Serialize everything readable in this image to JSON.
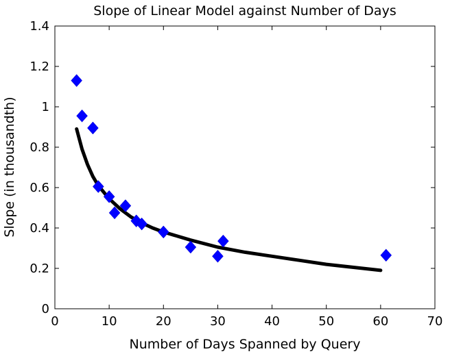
{
  "chart_data": {
    "type": "scatter",
    "title": "Slope of Linear Model against Number of Days",
    "xlabel": "Number of Days Spanned by Query",
    "ylabel": "Slope (in thousandth)",
    "xlim": [
      0,
      70
    ],
    "ylim": [
      0,
      1.4
    ],
    "xticks": [
      "0",
      "10",
      "20",
      "30",
      "40",
      "50",
      "60",
      "70"
    ],
    "yticks": [
      "0",
      "0.2",
      "0.4",
      "0.6",
      "0.8",
      "1",
      "1.2",
      "1.4"
    ],
    "grid": false,
    "legend": "none",
    "series": [
      {
        "kind": "scatter",
        "marker": "diamond",
        "color": "#0000ff",
        "x": [
          4,
          5,
          7,
          8,
          10,
          11,
          13,
          15,
          16,
          20,
          25,
          30,
          31,
          61
        ],
        "y": [
          1.13,
          0.955,
          0.895,
          0.605,
          0.555,
          0.475,
          0.51,
          0.435,
          0.42,
          0.38,
          0.305,
          0.26,
          0.335,
          0.265
        ]
      },
      {
        "kind": "fit-curve",
        "color": "#000000",
        "x": [
          4,
          5,
          6,
          7,
          8,
          10,
          12,
          14,
          16,
          18,
          20,
          25,
          30,
          35,
          40,
          45,
          50,
          55,
          60
        ],
        "y": [
          0.89,
          0.79,
          0.715,
          0.655,
          0.61,
          0.545,
          0.495,
          0.455,
          0.425,
          0.4,
          0.38,
          0.34,
          0.305,
          0.28,
          0.26,
          0.24,
          0.22,
          0.205,
          0.19
        ]
      }
    ]
  }
}
